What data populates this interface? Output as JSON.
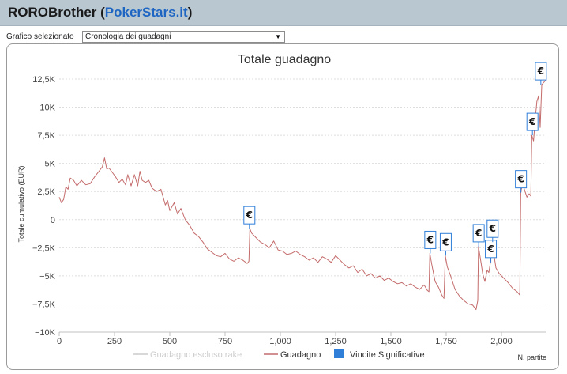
{
  "header": {
    "player": "ROROBrother",
    "site": "PokerStars.it",
    "open_paren": " (",
    "close_paren": ")"
  },
  "selector": {
    "label": "Grafico selezionato",
    "value": "Cronologia dei guadagni"
  },
  "colors": {
    "profit_line": "#c46b6b",
    "excl_rake_line": "#cccccc",
    "flag_fill": "#ffffff",
    "flag_border": "#2f7ed8",
    "legend_marker": "#2f7ed8",
    "grid": "#dddddd",
    "header_bg": "#b9c7d1",
    "site_link": "#1f66c3"
  },
  "chart_data": {
    "type": "line",
    "title": "Totale guadagno",
    "xlabel": "N. partite",
    "ylabel": "Totale cumulativo (EUR)",
    "xlim": [
      0,
      2200
    ],
    "ylim": [
      -10000,
      12500
    ],
    "x_ticks": [
      0,
      250,
      500,
      750,
      1000,
      1250,
      1500,
      1750,
      2000
    ],
    "x_tick_labels": [
      "0",
      "250",
      "500",
      "750",
      "1,000",
      "1,250",
      "1,500",
      "1,750",
      "2,000"
    ],
    "y_ticks": [
      -10000,
      -7500,
      -5000,
      -2500,
      0,
      2500,
      5000,
      7500,
      10000,
      12500
    ],
    "y_tick_labels": [
      "−10K",
      "−7,5K",
      "−5K",
      "−2,5K",
      "0",
      "2,5K",
      "5K",
      "7,5K",
      "10K",
      "12,5K"
    ],
    "grid": "horizontal dashed",
    "legend_position": "bottom-center",
    "series": [
      {
        "name": "Guadagno escluso rake",
        "visible": false,
        "points": []
      },
      {
        "name": "Guadagno",
        "points": [
          [
            0,
            2000
          ],
          [
            10,
            1500
          ],
          [
            20,
            1800
          ],
          [
            30,
            2900
          ],
          [
            40,
            2700
          ],
          [
            50,
            3700
          ],
          [
            65,
            3500
          ],
          [
            80,
            3000
          ],
          [
            100,
            3500
          ],
          [
            120,
            3100
          ],
          [
            140,
            3200
          ],
          [
            160,
            3800
          ],
          [
            180,
            4300
          ],
          [
            195,
            4700
          ],
          [
            205,
            5500
          ],
          [
            215,
            4500
          ],
          [
            225,
            4600
          ],
          [
            240,
            4200
          ],
          [
            255,
            3800
          ],
          [
            270,
            3300
          ],
          [
            285,
            3600
          ],
          [
            300,
            3100
          ],
          [
            310,
            4000
          ],
          [
            325,
            3000
          ],
          [
            340,
            4000
          ],
          [
            355,
            3000
          ],
          [
            365,
            4300
          ],
          [
            375,
            3500
          ],
          [
            390,
            3300
          ],
          [
            405,
            3500
          ],
          [
            420,
            2800
          ],
          [
            440,
            2500
          ],
          [
            460,
            2700
          ],
          [
            480,
            1300
          ],
          [
            490,
            1700
          ],
          [
            500,
            800
          ],
          [
            520,
            1500
          ],
          [
            535,
            500
          ],
          [
            550,
            1000
          ],
          [
            570,
            0
          ],
          [
            590,
            -500
          ],
          [
            610,
            -1200
          ],
          [
            630,
            -1500
          ],
          [
            650,
            -2000
          ],
          [
            670,
            -2600
          ],
          [
            690,
            -2900
          ],
          [
            710,
            -3200
          ],
          [
            730,
            -3300
          ],
          [
            750,
            -3000
          ],
          [
            770,
            -3500
          ],
          [
            790,
            -3700
          ],
          [
            810,
            -3400
          ],
          [
            830,
            -3600
          ],
          [
            850,
            -3900
          ],
          [
            858,
            -3700
          ],
          [
            862,
            -800
          ],
          [
            870,
            -1200
          ],
          [
            890,
            -1600
          ],
          [
            910,
            -2000
          ],
          [
            930,
            -2200
          ],
          [
            950,
            -2500
          ],
          [
            970,
            -1900
          ],
          [
            990,
            -2700
          ],
          [
            1010,
            -2800
          ],
          [
            1030,
            -3100
          ],
          [
            1050,
            -3000
          ],
          [
            1070,
            -2800
          ],
          [
            1090,
            -3100
          ],
          [
            1110,
            -3300
          ],
          [
            1130,
            -3600
          ],
          [
            1150,
            -3400
          ],
          [
            1170,
            -3800
          ],
          [
            1190,
            -3300
          ],
          [
            1210,
            -3500
          ],
          [
            1230,
            -3800
          ],
          [
            1250,
            -3200
          ],
          [
            1270,
            -3600
          ],
          [
            1290,
            -4000
          ],
          [
            1310,
            -4300
          ],
          [
            1330,
            -4100
          ],
          [
            1350,
            -4700
          ],
          [
            1370,
            -4400
          ],
          [
            1390,
            -5000
          ],
          [
            1410,
            -4800
          ],
          [
            1430,
            -5200
          ],
          [
            1450,
            -5000
          ],
          [
            1470,
            -5400
          ],
          [
            1490,
            -5200
          ],
          [
            1510,
            -5500
          ],
          [
            1530,
            -5700
          ],
          [
            1550,
            -5600
          ],
          [
            1570,
            -5900
          ],
          [
            1590,
            -5700
          ],
          [
            1610,
            -6000
          ],
          [
            1630,
            -6200
          ],
          [
            1650,
            -5800
          ],
          [
            1665,
            -6300
          ],
          [
            1672,
            -6400
          ],
          [
            1676,
            -3000
          ],
          [
            1685,
            -4000
          ],
          [
            1700,
            -5500
          ],
          [
            1715,
            -6000
          ],
          [
            1730,
            -6700
          ],
          [
            1740,
            -7000
          ],
          [
            1746,
            -3200
          ],
          [
            1755,
            -4200
          ],
          [
            1770,
            -5000
          ],
          [
            1790,
            -6200
          ],
          [
            1810,
            -6800
          ],
          [
            1830,
            -7200
          ],
          [
            1850,
            -7500
          ],
          [
            1870,
            -7600
          ],
          [
            1885,
            -8000
          ],
          [
            1893,
            -7200
          ],
          [
            1896,
            -2400
          ],
          [
            1905,
            -3500
          ],
          [
            1915,
            -4800
          ],
          [
            1925,
            -5500
          ],
          [
            1935,
            -4500
          ],
          [
            1943,
            -4700
          ],
          [
            1950,
            -3800
          ],
          [
            1958,
            -2000
          ],
          [
            1965,
            -3000
          ],
          [
            1975,
            -4300
          ],
          [
            1990,
            -4800
          ],
          [
            2010,
            -5200
          ],
          [
            2030,
            -5600
          ],
          [
            2050,
            -6100
          ],
          [
            2070,
            -6400
          ],
          [
            2083,
            -6700
          ],
          [
            2087,
            2400
          ],
          [
            2095,
            3200
          ],
          [
            2105,
            2600
          ],
          [
            2115,
            2000
          ],
          [
            2125,
            2300
          ],
          [
            2133,
            2100
          ],
          [
            2137,
            7500
          ],
          [
            2145,
            7000
          ],
          [
            2152,
            8800
          ],
          [
            2160,
            10500
          ],
          [
            2168,
            11000
          ],
          [
            2175,
            8200
          ],
          [
            2182,
            12000
          ],
          [
            2200,
            12400
          ]
        ]
      }
    ],
    "markers": {
      "name": "Vincite Significative",
      "symbol": "€",
      "points": [
        [
          860,
          -800
        ],
        [
          1678,
          -3000
        ],
        [
          1748,
          -3200
        ],
        [
          1897,
          -2400
        ],
        [
          1952,
          -3800
        ],
        [
          1960,
          -2000
        ],
        [
          2088,
          2400
        ],
        [
          2140,
          7500
        ],
        [
          2178,
          12000
        ]
      ]
    }
  }
}
